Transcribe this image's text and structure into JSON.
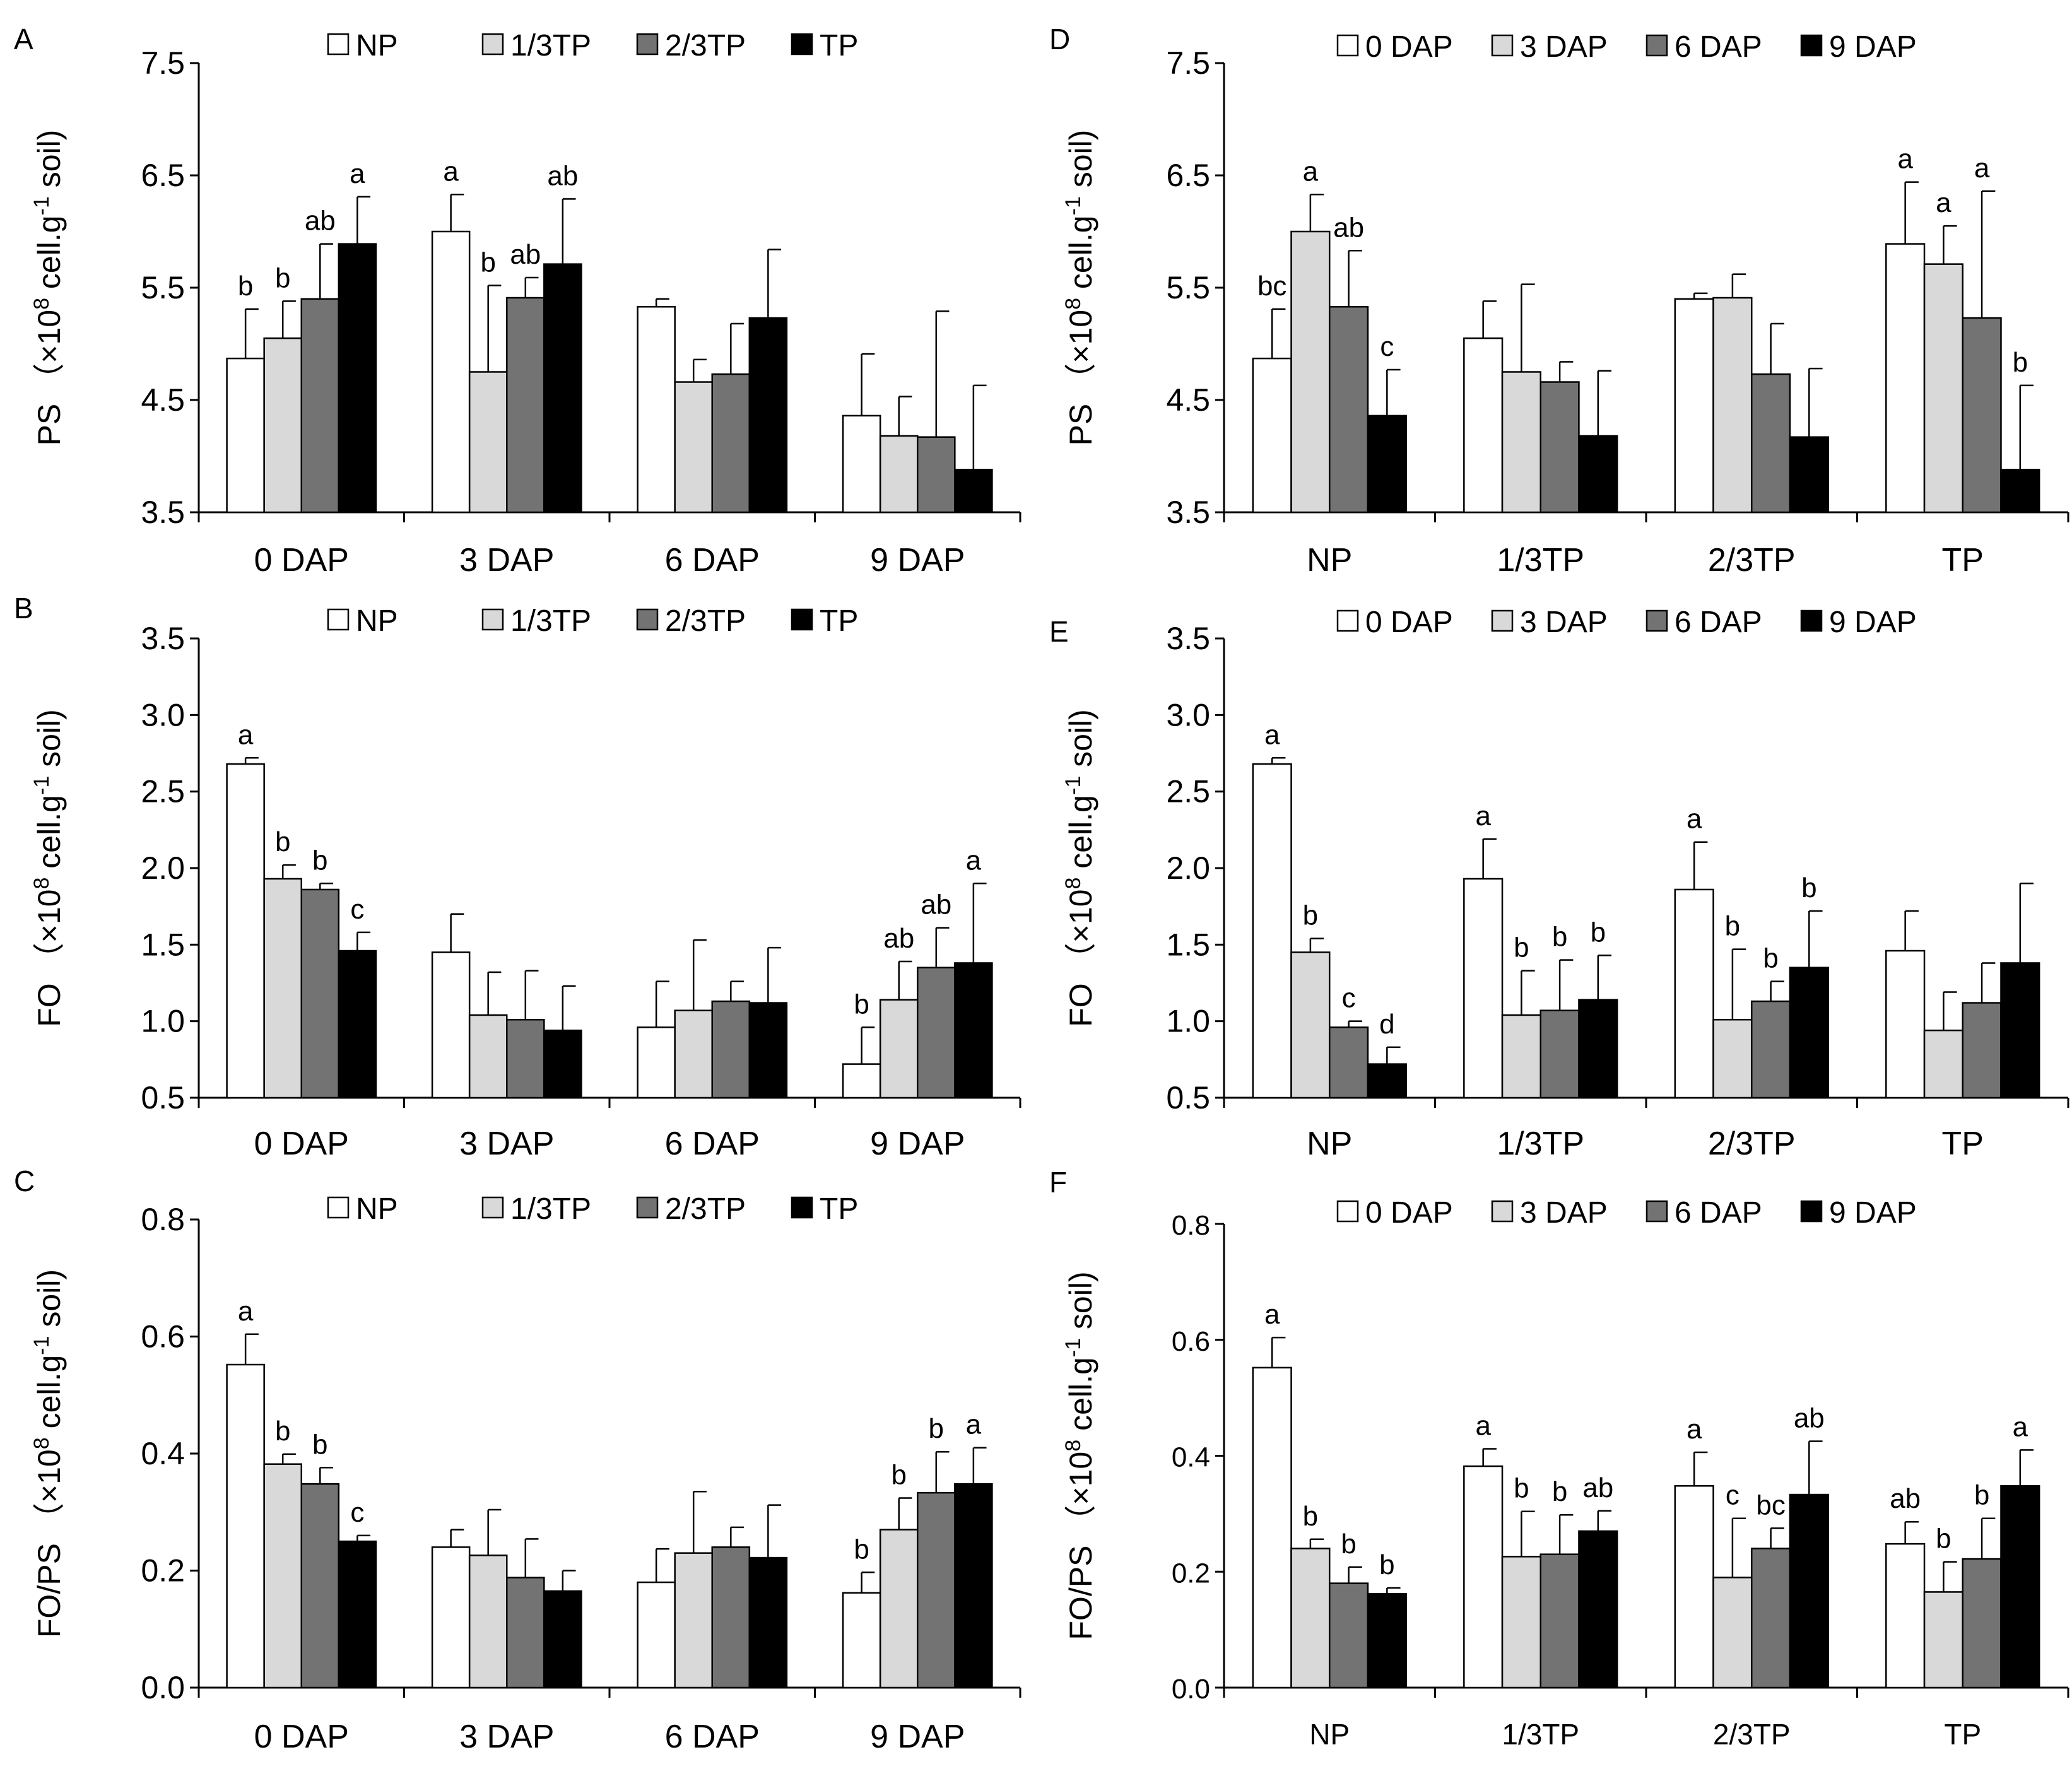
{
  "colors": {
    "NP": "#ffffff",
    "1/3TP": "#d9d9d9",
    "2/3TP": "#737373",
    "TP": "#000000",
    "0 DAP": "#ffffff",
    "3 DAP": "#d9d9d9",
    "6 DAP": "#737373",
    "9 DAP": "#000000"
  },
  "chart_data": [
    {
      "panel": "A",
      "type": "bar",
      "ylabel": {
        "main": "PS",
        "unit_prefix": "（×10",
        "unit_exp": "8",
        "unit_mid": " cell.g",
        "unit_exp2": "-1",
        "unit_suffix": " soil)"
      },
      "ylim": [
        3.5,
        7.5
      ],
      "ticks": [
        3.5,
        4.5,
        5.5,
        6.5,
        7.5
      ],
      "tick_labels": [
        "3.5",
        "4.5",
        "5.5",
        "6.5",
        "7.5"
      ],
      "categories": [
        "0 DAP",
        "3 DAP",
        "6 DAP",
        "9 DAP"
      ],
      "series": [
        {
          "name": "NP",
          "values": [
            4.87,
            6.0,
            5.33,
            4.36
          ],
          "errors": [
            0.44,
            0.33,
            0.07,
            0.55
          ],
          "labels": [
            "b",
            "a",
            "",
            ""
          ]
        },
        {
          "name": "1/3TP",
          "values": [
            5.05,
            4.75,
            4.66,
            4.18
          ],
          "errors": [
            0.33,
            0.77,
            0.2,
            0.35
          ],
          "labels": [
            "b",
            "b",
            "",
            ""
          ]
        },
        {
          "name": "2/3TP",
          "values": [
            5.4,
            5.41,
            4.73,
            4.17
          ],
          "errors": [
            0.49,
            0.18,
            0.45,
            1.12
          ],
          "labels": [
            "ab",
            "ab",
            "",
            ""
          ]
        },
        {
          "name": "TP",
          "values": [
            5.89,
            5.71,
            5.23,
            3.88
          ],
          "errors": [
            0.42,
            0.58,
            0.61,
            0.75
          ],
          "labels": [
            "a",
            "ab",
            "",
            ""
          ]
        }
      ]
    },
    {
      "panel": "B",
      "type": "bar",
      "ylabel": {
        "main": "FO",
        "unit_prefix": "（×10",
        "unit_exp": "8",
        "unit_mid": " cell.g",
        "unit_exp2": "-1",
        "unit_suffix": " soil)"
      },
      "ylim": [
        0.5,
        3.5
      ],
      "ticks": [
        0.5,
        1.0,
        1.5,
        2.0,
        2.5,
        3.0,
        3.5
      ],
      "tick_labels": [
        "0.5",
        "1.0",
        "1.5",
        "2.0",
        "2.5",
        "3.0",
        "3.5"
      ],
      "categories": [
        "0 DAP",
        "3 DAP",
        "6 DAP",
        "9 DAP"
      ],
      "series": [
        {
          "name": "NP",
          "values": [
            2.68,
            1.45,
            0.96,
            0.72
          ],
          "errors": [
            0.04,
            0.25,
            0.3,
            0.24
          ],
          "labels": [
            "a",
            "",
            "",
            "b"
          ]
        },
        {
          "name": "1/3TP",
          "values": [
            1.93,
            1.04,
            1.07,
            1.14
          ],
          "errors": [
            0.09,
            0.28,
            0.46,
            0.25
          ],
          "labels": [
            "b",
            "",
            "",
            "ab"
          ]
        },
        {
          "name": "2/3TP",
          "values": [
            1.86,
            1.01,
            1.13,
            1.35
          ],
          "errors": [
            0.04,
            0.32,
            0.13,
            0.26
          ],
          "labels": [
            "b",
            "",
            "",
            "ab"
          ]
        },
        {
          "name": "TP",
          "values": [
            1.46,
            0.94,
            1.12,
            1.38
          ],
          "errors": [
            0.12,
            0.29,
            0.36,
            0.52
          ],
          "labels": [
            "c",
            "",
            "",
            "a"
          ]
        }
      ]
    },
    {
      "panel": "C",
      "type": "bar",
      "ylabel": {
        "main": "FO/PS",
        "unit_prefix": "（×10",
        "unit_exp": "8",
        "unit_mid": " cell.g",
        "unit_exp2": "-1",
        "unit_suffix": " soil)"
      },
      "ylim": [
        0.0,
        0.8
      ],
      "ticks": [
        0.0,
        0.2,
        0.4,
        0.6,
        0.8
      ],
      "tick_labels": [
        "0.0",
        "0.2",
        "0.4",
        "0.6",
        "0.8"
      ],
      "categories": [
        "0 DAP",
        "3 DAP",
        "6 DAP",
        "9 DAP"
      ],
      "series": [
        {
          "name": "NP",
          "values": [
            0.552,
            0.24,
            0.18,
            0.162
          ],
          "errors": [
            0.052,
            0.03,
            0.057,
            0.035
          ],
          "labels": [
            "a",
            "",
            "",
            "b"
          ]
        },
        {
          "name": "1/3TP",
          "values": [
            0.382,
            0.226,
            0.23,
            0.27
          ],
          "errors": [
            0.017,
            0.078,
            0.105,
            0.054
          ],
          "labels": [
            "b",
            "",
            "",
            "b"
          ]
        },
        {
          "name": "2/3TP",
          "values": [
            0.348,
            0.188,
            0.24,
            0.333
          ],
          "errors": [
            0.028,
            0.066,
            0.034,
            0.07
          ],
          "labels": [
            "b",
            "",
            "",
            "b"
          ]
        },
        {
          "name": "TP",
          "values": [
            0.25,
            0.165,
            0.222,
            0.348
          ],
          "errors": [
            0.01,
            0.035,
            0.09,
            0.062
          ],
          "labels": [
            "c",
            "",
            "",
            "a"
          ]
        }
      ]
    },
    {
      "panel": "D",
      "type": "bar",
      "ylabel": {
        "main": "PS",
        "unit_prefix": "（×10",
        "unit_exp": "8",
        "unit_mid": " cell.g",
        "unit_exp2": "-1",
        "unit_suffix": " soil)"
      },
      "ylim": [
        3.5,
        7.5
      ],
      "ticks": [
        3.5,
        4.5,
        5.5,
        6.5,
        7.5
      ],
      "tick_labels": [
        "3.5",
        "4.5",
        "5.5",
        "6.5",
        "7.5"
      ],
      "categories": [
        "NP",
        "1/3TP",
        "2/3TP",
        "TP"
      ],
      "series": [
        {
          "name": "0 DAP",
          "values": [
            4.87,
            5.05,
            5.4,
            5.89
          ],
          "errors": [
            0.44,
            0.33,
            0.05,
            0.55
          ],
          "labels": [
            "bc",
            "",
            "",
            "a"
          ]
        },
        {
          "name": "3 DAP",
          "values": [
            6.0,
            4.75,
            5.41,
            5.71
          ],
          "errors": [
            0.33,
            0.78,
            0.21,
            0.34
          ],
          "labels": [
            "a",
            "",
            "",
            "a"
          ]
        },
        {
          "name": "6 DAP",
          "values": [
            5.33,
            4.66,
            4.73,
            5.23
          ],
          "errors": [
            0.5,
            0.18,
            0.45,
            1.13
          ],
          "labels": [
            "ab",
            "",
            "",
            "a"
          ]
        },
        {
          "name": "9 DAP",
          "values": [
            4.36,
            4.18,
            4.17,
            3.88
          ],
          "errors": [
            0.41,
            0.58,
            0.61,
            0.75
          ],
          "labels": [
            "c",
            "",
            "",
            "b"
          ]
        }
      ]
    },
    {
      "panel": "E",
      "type": "bar",
      "ylabel": {
        "main": "FO",
        "unit_prefix": "（×10",
        "unit_exp": "8",
        "unit_mid": " cell.g",
        "unit_exp2": "-1",
        "unit_suffix": " soil)"
      },
      "ylim": [
        0.5,
        3.5
      ],
      "ticks": [
        0.5,
        1.0,
        1.5,
        2.0,
        2.5,
        3.0,
        3.5
      ],
      "tick_labels": [
        "0.5",
        "1.0",
        "1.5",
        "2.0",
        "2.5",
        "3.0",
        "3.5"
      ],
      "categories": [
        "NP",
        "1/3TP",
        "2/3TP",
        "TP"
      ],
      "series": [
        {
          "name": "0 DAP",
          "values": [
            2.68,
            1.93,
            1.86,
            1.46
          ],
          "errors": [
            0.04,
            0.26,
            0.31,
            0.26
          ],
          "labels": [
            "a",
            "a",
            "a",
            ""
          ]
        },
        {
          "name": "3 DAP",
          "values": [
            1.45,
            1.04,
            1.01,
            0.94
          ],
          "errors": [
            0.09,
            0.29,
            0.46,
            0.25
          ],
          "labels": [
            "b",
            "b",
            "b",
            ""
          ]
        },
        {
          "name": "6 DAP",
          "values": [
            0.96,
            1.07,
            1.13,
            1.12
          ],
          "errors": [
            0.04,
            0.33,
            0.13,
            0.26
          ],
          "labels": [
            "c",
            "b",
            "b",
            ""
          ]
        },
        {
          "name": "9 DAP",
          "values": [
            0.72,
            1.14,
            1.35,
            1.38
          ],
          "errors": [
            0.11,
            0.29,
            0.37,
            0.52
          ],
          "labels": [
            "d",
            "b",
            "b",
            ""
          ]
        }
      ]
    },
    {
      "panel": "F",
      "type": "bar",
      "ylabel": {
        "main": "FO/PS",
        "unit_prefix": "（×10",
        "unit_exp": "8",
        "unit_mid": " cell.g",
        "unit_exp2": "-1",
        "unit_suffix": " soil)"
      },
      "ylim": [
        0.0,
        0.8
      ],
      "ticks": [
        0.0,
        0.2,
        0.4,
        0.6,
        0.8
      ],
      "tick_labels": [
        "0.0",
        "0.2",
        "0.4",
        "0.6",
        "0.8"
      ],
      "categories": [
        "NP",
        "1/3TP",
        "2/3TP",
        "TP"
      ],
      "series": [
        {
          "name": "0 DAP",
          "values": [
            0.552,
            0.382,
            0.348,
            0.248
          ],
          "errors": [
            0.052,
            0.03,
            0.058,
            0.038
          ],
          "labels": [
            "a",
            "a",
            "a",
            "ab"
          ]
        },
        {
          "name": "3 DAP",
          "values": [
            0.24,
            0.226,
            0.19,
            0.165
          ],
          "errors": [
            0.016,
            0.078,
            0.102,
            0.052
          ],
          "labels": [
            "b",
            "b",
            "c",
            "b"
          ]
        },
        {
          "name": "6 DAP",
          "values": [
            0.18,
            0.23,
            0.24,
            0.222
          ],
          "errors": [
            0.028,
            0.068,
            0.035,
            0.07
          ],
          "labels": [
            "b",
            "b",
            "bc",
            "b"
          ]
        },
        {
          "name": "9 DAP",
          "values": [
            0.162,
            0.27,
            0.333,
            0.348
          ],
          "errors": [
            0.01,
            0.035,
            0.092,
            0.062
          ],
          "labels": [
            "b",
            "ab",
            "ab",
            "a"
          ]
        }
      ]
    }
  ]
}
